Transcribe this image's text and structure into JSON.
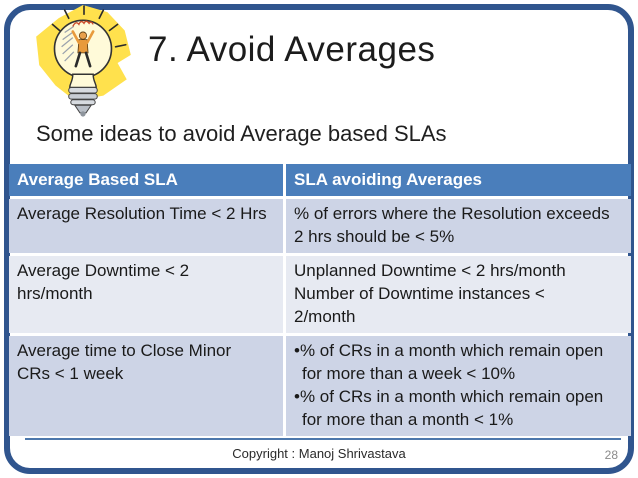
{
  "slide": {
    "title": "7. Avoid Averages",
    "subtitle": "Some ideas to avoid Average based SLAs",
    "icon": "lightbulb-idea-clipart",
    "footer": {
      "copyright": "Copyright : Manoj Shrivastava",
      "page_number": "28"
    }
  },
  "table": {
    "bullet_char": "•",
    "headers": [
      "Average Based SLA",
      "SLA avoiding Averages"
    ],
    "rows": [
      {
        "sla_lines": [
          "Average Resolution Time < 2 Hrs"
        ],
        "alternative_items": [
          {
            "bullet": false,
            "lines": [
              "% of errors where the Resolution exceeds",
              "2 hrs should be < 5%"
            ]
          }
        ]
      },
      {
        "sla_lines": [
          "Average Downtime < 2",
          "hrs/month"
        ],
        "alternative_items": [
          {
            "bullet": false,
            "lines": [
              "Unplanned Downtime < 2 hrs/month",
              "Number of Downtime instances <",
              "2/month"
            ]
          }
        ]
      },
      {
        "sla_lines": [
          "Average time to Close Minor",
          "CRs < 1 week"
        ],
        "alternative_items": [
          {
            "bullet": true,
            "lines": [
              "% of CRs in a month which remain open",
              "for more than a week < 10%"
            ]
          },
          {
            "bullet": true,
            "lines": [
              "% of CRs in a month which remain open",
              "for more than a month < 1%"
            ]
          }
        ]
      }
    ]
  },
  "colors": {
    "frame_border": "#30558E",
    "table_header_bg": "#4A7EBB",
    "table_header_text": "#FFFFFF",
    "row_band_dark": "#CDD4E6",
    "row_band_light": "#E7EAF2",
    "footer_line": "#4C77AC",
    "page_number_text": "#8A8A8A",
    "clipart_yellow": "#FFE14D"
  }
}
